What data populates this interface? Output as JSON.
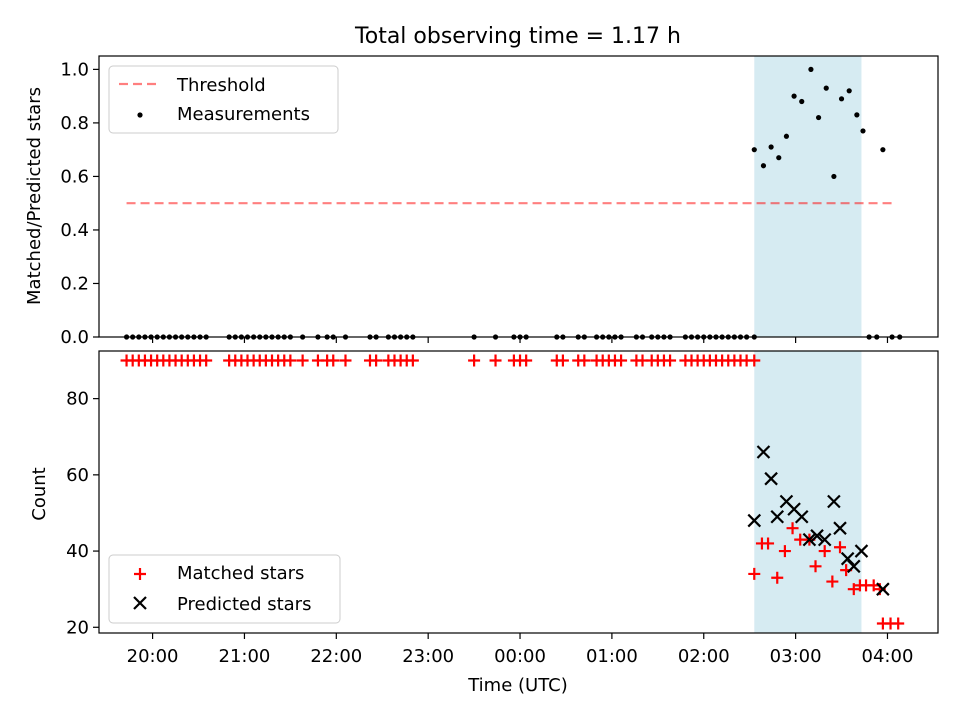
{
  "figure": {
    "title": "Total observing time = 1.17 h",
    "x_label": "Time (UTC)"
  },
  "chart_data": [
    {
      "type": "scatter",
      "panel": "top",
      "xlabel": "",
      "ylabel": "Matched/Predicted stars",
      "xlim": [
        "19:25",
        "04:33"
      ],
      "ylim": [
        0,
        1.05
      ],
      "yticks": [
        0.0,
        0.2,
        0.4,
        0.6,
        0.8,
        1.0
      ],
      "ytick_labels": [
        "0.0",
        "0.2",
        "0.4",
        "0.6",
        "0.8",
        "1.0"
      ],
      "shaded_interval": [
        "02:33",
        "03:43"
      ],
      "legend_position": "upper-left",
      "threshold": {
        "name": "Threshold",
        "y": 0.5,
        "x_range": [
          "19:43",
          "04:03"
        ]
      },
      "measurements": {
        "name": "Measurements",
        "points": [
          [
            "19:43",
            0.0
          ],
          [
            "19:47",
            0.0
          ],
          [
            "19:51",
            0.0
          ],
          [
            "19:55",
            0.0
          ],
          [
            "19:59",
            0.0
          ],
          [
            "20:03",
            0.0
          ],
          [
            "20:07",
            0.0
          ],
          [
            "20:11",
            0.0
          ],
          [
            "20:15",
            0.0
          ],
          [
            "20:19",
            0.0
          ],
          [
            "20:23",
            0.0
          ],
          [
            "20:27",
            0.0
          ],
          [
            "20:31",
            0.0
          ],
          [
            "20:35",
            0.0
          ],
          [
            "20:50",
            0.0
          ],
          [
            "20:54",
            0.0
          ],
          [
            "20:58",
            0.0
          ],
          [
            "21:02",
            0.0
          ],
          [
            "21:06",
            0.0
          ],
          [
            "21:10",
            0.0
          ],
          [
            "21:14",
            0.0
          ],
          [
            "21:18",
            0.0
          ],
          [
            "21:22",
            0.0
          ],
          [
            "21:26",
            0.0
          ],
          [
            "21:30",
            0.0
          ],
          [
            "21:38",
            0.0
          ],
          [
            "21:48",
            0.0
          ],
          [
            "21:54",
            0.0
          ],
          [
            "21:58",
            0.0
          ],
          [
            "22:06",
            0.0
          ],
          [
            "22:22",
            0.0
          ],
          [
            "22:26",
            0.0
          ],
          [
            "22:34",
            0.0
          ],
          [
            "22:38",
            0.0
          ],
          [
            "22:42",
            0.0
          ],
          [
            "22:46",
            0.0
          ],
          [
            "22:50",
            0.0
          ],
          [
            "23:30",
            0.0
          ],
          [
            "23:44",
            0.0
          ],
          [
            "23:56",
            0.0
          ],
          [
            "00:00",
            0.0
          ],
          [
            "00:04",
            0.0
          ],
          [
            "00:24",
            0.0
          ],
          [
            "00:28",
            0.0
          ],
          [
            "00:38",
            0.0
          ],
          [
            "00:42",
            0.0
          ],
          [
            "00:50",
            0.0
          ],
          [
            "00:54",
            0.0
          ],
          [
            "00:58",
            0.0
          ],
          [
            "01:02",
            0.0
          ],
          [
            "01:06",
            0.0
          ],
          [
            "01:16",
            0.0
          ],
          [
            "01:20",
            0.0
          ],
          [
            "01:26",
            0.0
          ],
          [
            "01:30",
            0.0
          ],
          [
            "01:34",
            0.0
          ],
          [
            "01:38",
            0.0
          ],
          [
            "01:48",
            0.0
          ],
          [
            "01:52",
            0.0
          ],
          [
            "01:56",
            0.0
          ],
          [
            "02:00",
            0.0
          ],
          [
            "02:04",
            0.0
          ],
          [
            "02:08",
            0.0
          ],
          [
            "02:12",
            0.0
          ],
          [
            "02:16",
            0.0
          ],
          [
            "02:20",
            0.0
          ],
          [
            "02:24",
            0.0
          ],
          [
            "02:28",
            0.0
          ],
          [
            "02:33",
            0.0
          ],
          [
            "02:33",
            0.7
          ],
          [
            "02:39",
            0.64
          ],
          [
            "02:44",
            0.71
          ],
          [
            "02:49",
            0.67
          ],
          [
            "02:54",
            0.75
          ],
          [
            "02:59",
            0.9
          ],
          [
            "03:04",
            0.88
          ],
          [
            "03:10",
            1.0
          ],
          [
            "03:15",
            0.82
          ],
          [
            "03:20",
            0.93
          ],
          [
            "03:25",
            0.6
          ],
          [
            "03:30",
            0.89
          ],
          [
            "03:35",
            0.92
          ],
          [
            "03:40",
            0.83
          ],
          [
            "03:44",
            0.77
          ],
          [
            "03:48",
            0.0
          ],
          [
            "03:53",
            0.0
          ],
          [
            "03:57",
            0.7
          ],
          [
            "04:03",
            0.0
          ],
          [
            "04:08",
            0.0
          ]
        ]
      }
    },
    {
      "type": "scatter",
      "panel": "bottom",
      "xlabel": "Time (UTC)",
      "ylabel": "Count",
      "xlim": [
        "19:25",
        "04:33"
      ],
      "ylim": [
        18.5,
        92.5
      ],
      "yticks": [
        20,
        40,
        60,
        80
      ],
      "ytick_labels": [
        "20",
        "40",
        "60",
        "80"
      ],
      "xticks": [
        "20:00",
        "21:00",
        "22:00",
        "23:00",
        "00:00",
        "01:00",
        "02:00",
        "03:00",
        "04:00"
      ],
      "xtick_labels": [
        "20:00",
        "21:00",
        "22:00",
        "23:00",
        "00:00",
        "01:00",
        "02:00",
        "03:00",
        "04:00"
      ],
      "shaded_interval": [
        "02:33",
        "03:43"
      ],
      "legend_position": "lower-left",
      "series": [
        {
          "name": "Matched stars",
          "marker": "plus",
          "color": "#ff0000",
          "points": [
            [
              "19:43",
              90
            ],
            [
              "19:47",
              90
            ],
            [
              "19:51",
              90
            ],
            [
              "19:55",
              90
            ],
            [
              "19:59",
              90
            ],
            [
              "20:03",
              90
            ],
            [
              "20:07",
              90
            ],
            [
              "20:11",
              90
            ],
            [
              "20:15",
              90
            ],
            [
              "20:19",
              90
            ],
            [
              "20:23",
              90
            ],
            [
              "20:27",
              90
            ],
            [
              "20:31",
              90
            ],
            [
              "20:35",
              90
            ],
            [
              "20:50",
              90
            ],
            [
              "20:54",
              90
            ],
            [
              "20:58",
              90
            ],
            [
              "21:02",
              90
            ],
            [
              "21:06",
              90
            ],
            [
              "21:10",
              90
            ],
            [
              "21:14",
              90
            ],
            [
              "21:18",
              90
            ],
            [
              "21:22",
              90
            ],
            [
              "21:26",
              90
            ],
            [
              "21:30",
              90
            ],
            [
              "21:38",
              90
            ],
            [
              "21:48",
              90
            ],
            [
              "21:54",
              90
            ],
            [
              "21:58",
              90
            ],
            [
              "22:06",
              90
            ],
            [
              "22:22",
              90
            ],
            [
              "22:26",
              90
            ],
            [
              "22:34",
              90
            ],
            [
              "22:38",
              90
            ],
            [
              "22:42",
              90
            ],
            [
              "22:46",
              90
            ],
            [
              "22:50",
              90
            ],
            [
              "23:30",
              90
            ],
            [
              "23:44",
              90
            ],
            [
              "23:56",
              90
            ],
            [
              "00:00",
              90
            ],
            [
              "00:04",
              90
            ],
            [
              "00:24",
              90
            ],
            [
              "00:28",
              90
            ],
            [
              "00:38",
              90
            ],
            [
              "00:42",
              90
            ],
            [
              "00:50",
              90
            ],
            [
              "00:54",
              90
            ],
            [
              "00:58",
              90
            ],
            [
              "01:02",
              90
            ],
            [
              "01:06",
              90
            ],
            [
              "01:16",
              90
            ],
            [
              "01:20",
              90
            ],
            [
              "01:26",
              90
            ],
            [
              "01:30",
              90
            ],
            [
              "01:34",
              90
            ],
            [
              "01:38",
              90
            ],
            [
              "01:48",
              90
            ],
            [
              "01:52",
              90
            ],
            [
              "01:56",
              90
            ],
            [
              "02:00",
              90
            ],
            [
              "02:04",
              90
            ],
            [
              "02:08",
              90
            ],
            [
              "02:12",
              90
            ],
            [
              "02:16",
              90
            ],
            [
              "02:20",
              90
            ],
            [
              "02:24",
              90
            ],
            [
              "02:28",
              90
            ],
            [
              "02:33",
              90
            ],
            [
              "02:33",
              34
            ],
            [
              "02:38",
              42
            ],
            [
              "02:42",
              42
            ],
            [
              "02:48",
              33
            ],
            [
              "02:53",
              40
            ],
            [
              "02:58",
              46
            ],
            [
              "03:03",
              43
            ],
            [
              "03:09",
              43
            ],
            [
              "03:13",
              36
            ],
            [
              "03:19",
              40
            ],
            [
              "03:24",
              32
            ],
            [
              "03:29",
              41
            ],
            [
              "03:33",
              35
            ],
            [
              "03:38",
              30
            ],
            [
              "03:42",
              31
            ],
            [
              "03:46",
              31
            ],
            [
              "03:51",
              31
            ],
            [
              "03:55",
              30
            ],
            [
              "03:57",
              21
            ],
            [
              "04:02",
              21
            ],
            [
              "04:07",
              21
            ]
          ]
        },
        {
          "name": "Predicted stars",
          "marker": "x",
          "color": "#000000",
          "points": [
            [
              "02:33",
              48
            ],
            [
              "02:39",
              66
            ],
            [
              "02:44",
              59
            ],
            [
              "02:48",
              49
            ],
            [
              "02:54",
              53
            ],
            [
              "02:59",
              51
            ],
            [
              "03:04",
              49
            ],
            [
              "03:09",
              43
            ],
            [
              "03:14",
              44
            ],
            [
              "03:19",
              43
            ],
            [
              "03:25",
              53
            ],
            [
              "03:29",
              46
            ],
            [
              "03:34",
              38
            ],
            [
              "03:38",
              36
            ],
            [
              "03:43",
              40
            ],
            [
              "03:57",
              30
            ]
          ]
        }
      ]
    }
  ]
}
